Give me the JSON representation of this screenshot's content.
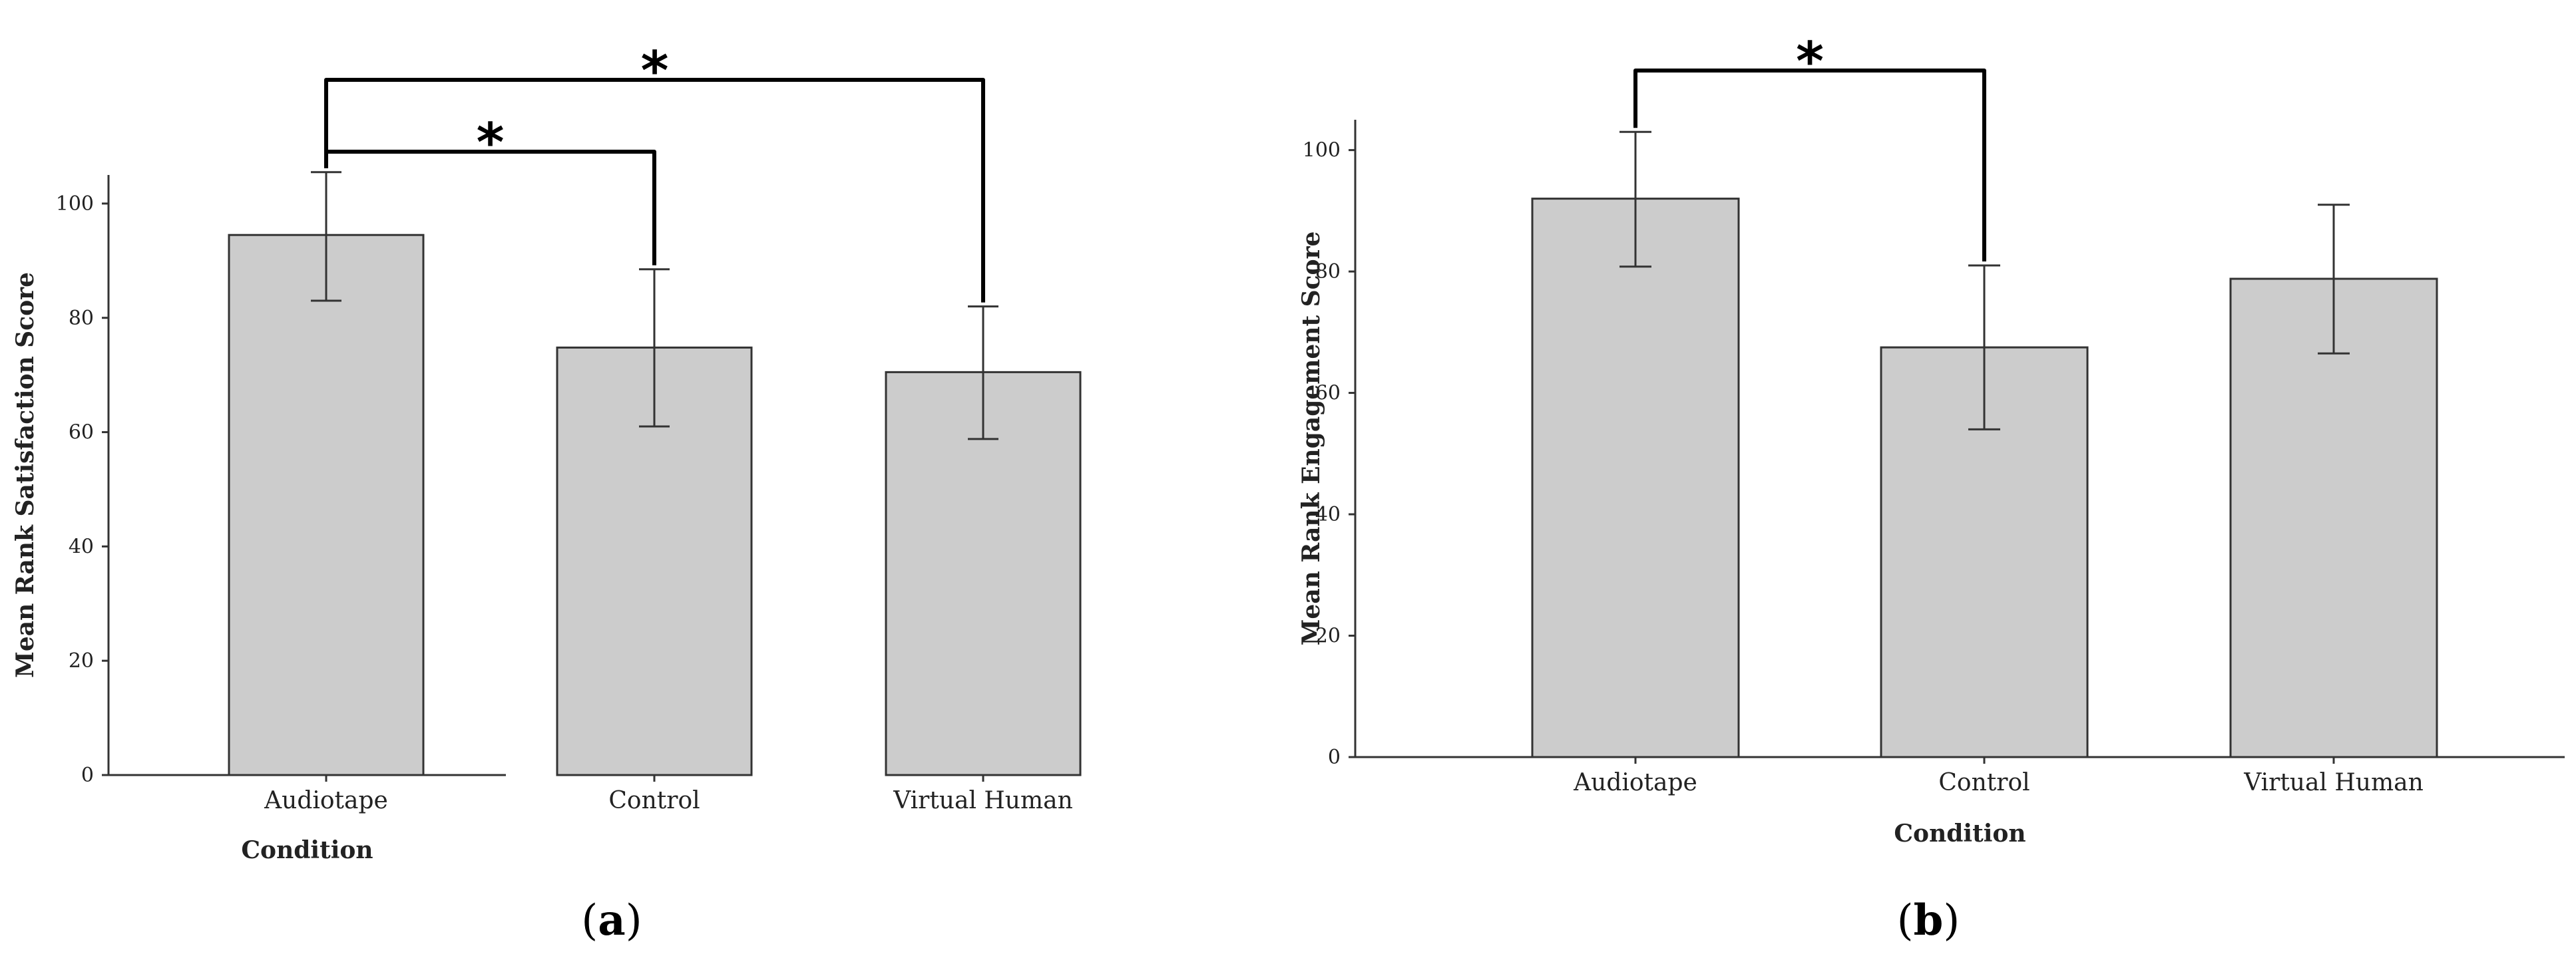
{
  "chart_data": [
    {
      "type": "bar",
      "panel_label": "a",
      "categories": [
        "Audiotape",
        "Control",
        "Virtual Human"
      ],
      "values": [
        94.5,
        74.8,
        70.5
      ],
      "error_low": [
        83.0,
        61.0,
        58.8
      ],
      "error_high": [
        105.5,
        88.5,
        82.0
      ],
      "xlabel": "Condition",
      "ylabel": "Mean Rank Satisfaction Score",
      "ylim": [
        0,
        105
      ],
      "yticks": [
        0,
        20,
        40,
        60,
        80,
        100
      ],
      "grid": false,
      "bar_color": "#cccccc",
      "significance": [
        {
          "from": 0,
          "to": 1,
          "label": "*"
        },
        {
          "from": 0,
          "to": 2,
          "label": "*"
        }
      ]
    },
    {
      "type": "bar",
      "panel_label": "b",
      "categories": [
        "Audiotape",
        "Control",
        "Virtual Human"
      ],
      "values": [
        92.0,
        67.5,
        78.8
      ],
      "error_low": [
        80.8,
        54.0,
        66.5
      ],
      "error_high": [
        103.0,
        81.0,
        91.0
      ],
      "xlabel": "Condition",
      "ylabel": "Mean Rank Engagement Score",
      "ylim": [
        0,
        105
      ],
      "yticks": [
        0,
        20,
        40,
        60,
        80,
        100
      ],
      "grid": false,
      "bar_color": "#cccccc",
      "significance": [
        {
          "from": 0,
          "to": 1,
          "label": "*"
        }
      ]
    }
  ]
}
